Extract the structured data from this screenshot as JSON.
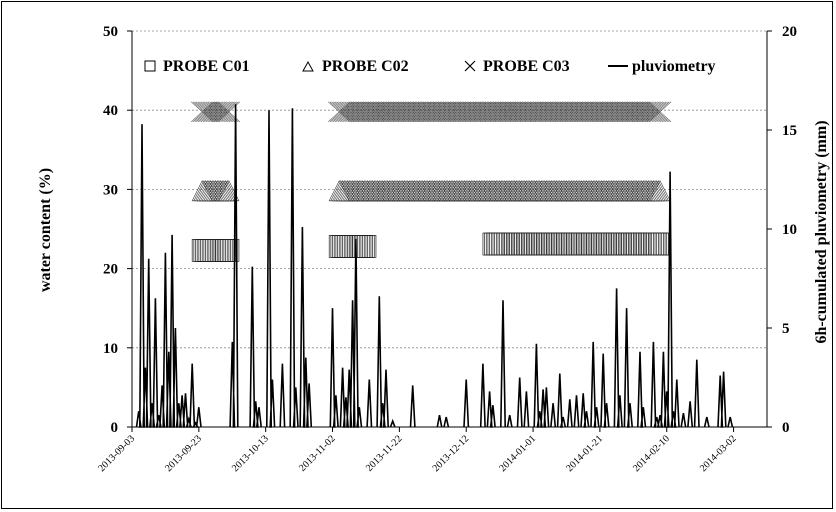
{
  "chart_data": {
    "type": "line",
    "title": "",
    "ylabel": "water content (%)",
    "y2label": "6h-cumulated pluviometry (mm)",
    "ylim": [
      0,
      50
    ],
    "y2lim": [
      0,
      20
    ],
    "yticks": [
      "0",
      "10",
      "20",
      "30",
      "40",
      "50"
    ],
    "y2ticks": [
      "0",
      "5",
      "10",
      "15",
      "20"
    ],
    "xlim": [
      "2013-09-03",
      "2014-03-12"
    ],
    "xticks": [
      "2013-09-03",
      "2013-09-23",
      "2013-10-13",
      "2013-11-02",
      "2013-11-22",
      "2013-12-12",
      "2014-01-01",
      "2014-01-21",
      "2014-02-10",
      "2014-03-02"
    ],
    "grid": "horizontal dashed at y-ticks",
    "legend_placement": "top",
    "colors": {
      "series": "#000000",
      "markers": "#333333",
      "grid": "#888888"
    },
    "series": [
      {
        "name": "PROBE C01",
        "marker": "square",
        "axis": "left",
        "segments": [
          {
            "x": [
              "2013-09-24",
              "2013-10-02"
            ],
            "y": 22.3
          },
          {
            "x": [
              "2013-11-04",
              "2013-11-12"
            ],
            "y": 22.8
          },
          {
            "x": [
              "2013-12-20",
              "2014-02-08"
            ],
            "y": 23.1
          }
        ]
      },
      {
        "name": "PROBE C02",
        "marker": "triangle",
        "axis": "left",
        "segments": [
          {
            "x": [
              "2013-09-24",
              "2013-10-02"
            ],
            "y": 29.7
          },
          {
            "x": [
              "2013-11-04",
              "2014-02-08"
            ],
            "y": 29.7
          }
        ]
      },
      {
        "name": "PROBE C03",
        "marker": "cross",
        "axis": "left",
        "segments": [
          {
            "x": [
              "2013-09-24",
              "2013-10-02"
            ],
            "y": 39.8
          },
          {
            "x": [
              "2013-11-04",
              "2014-02-08"
            ],
            "y": 39.8
          }
        ]
      },
      {
        "name": "pluviometry",
        "marker": "line",
        "axis": "right",
        "points": [
          [
            "2013-09-05",
            0.8
          ],
          [
            "2013-09-06",
            15.3
          ],
          [
            "2013-09-07",
            3.0
          ],
          [
            "2013-09-08",
            8.5
          ],
          [
            "2013-09-09",
            1.2
          ],
          [
            "2013-09-10",
            6.5
          ],
          [
            "2013-09-11",
            0.6
          ],
          [
            "2013-09-12",
            2.1
          ],
          [
            "2013-09-13",
            8.8
          ],
          [
            "2013-09-14",
            3.8
          ],
          [
            "2013-09-15",
            9.7
          ],
          [
            "2013-09-16",
            5.0
          ],
          [
            "2013-09-17",
            1.2
          ],
          [
            "2013-09-18",
            1.6
          ],
          [
            "2013-09-19",
            1.7
          ],
          [
            "2013-09-20",
            0.4
          ],
          [
            "2013-09-21",
            3.2
          ],
          [
            "2013-09-22",
            0.2
          ],
          [
            "2013-09-23",
            1.0
          ],
          [
            "2013-10-03",
            4.3
          ],
          [
            "2013-10-04",
            16.3
          ],
          [
            "2013-10-09",
            8.1
          ],
          [
            "2013-10-10",
            1.3
          ],
          [
            "2013-10-11",
            1.0
          ],
          [
            "2013-10-14",
            16.0
          ],
          [
            "2013-10-15",
            2.4
          ],
          [
            "2013-10-18",
            3.2
          ],
          [
            "2013-10-21",
            16.1
          ],
          [
            "2013-10-22",
            2.0
          ],
          [
            "2013-10-24",
            10.1
          ],
          [
            "2013-10-25",
            3.5
          ],
          [
            "2013-10-26",
            2.2
          ],
          [
            "2013-11-02",
            6.0
          ],
          [
            "2013-11-03",
            1.6
          ],
          [
            "2013-11-05",
            3.0
          ],
          [
            "2013-11-06",
            1.5
          ],
          [
            "2013-11-07",
            2.9
          ],
          [
            "2013-11-08",
            6.4
          ],
          [
            "2013-11-09",
            9.5
          ],
          [
            "2013-11-10",
            1.0
          ],
          [
            "2013-11-13",
            2.4
          ],
          [
            "2013-11-16",
            6.6
          ],
          [
            "2013-11-17",
            1.2
          ],
          [
            "2013-11-18",
            2.9
          ],
          [
            "2013-11-20",
            0.3
          ],
          [
            "2013-11-26",
            2.1
          ],
          [
            "2013-12-04",
            0.6
          ],
          [
            "2013-12-06",
            0.5
          ],
          [
            "2013-12-12",
            2.4
          ],
          [
            "2013-12-17",
            3.2
          ],
          [
            "2013-12-19",
            1.8
          ],
          [
            "2013-12-20",
            1.1
          ],
          [
            "2013-12-23",
            6.4
          ],
          [
            "2013-12-25",
            0.6
          ],
          [
            "2013-12-28",
            2.5
          ],
          [
            "2013-12-30",
            1.8
          ],
          [
            "2014-01-02",
            4.2
          ],
          [
            "2014-01-03",
            0.8
          ],
          [
            "2014-01-04",
            1.9
          ],
          [
            "2014-01-05",
            2.0
          ],
          [
            "2014-01-07",
            1.2
          ],
          [
            "2014-01-09",
            2.7
          ],
          [
            "2014-01-10",
            0.5
          ],
          [
            "2014-01-12",
            1.4
          ],
          [
            "2014-01-14",
            1.6
          ],
          [
            "2014-01-16",
            1.7
          ],
          [
            "2014-01-17",
            0.8
          ],
          [
            "2014-01-19",
            4.3
          ],
          [
            "2014-01-20",
            1.0
          ],
          [
            "2014-01-22",
            3.7
          ],
          [
            "2014-01-23",
            1.2
          ],
          [
            "2014-01-26",
            7.0
          ],
          [
            "2014-01-27",
            1.6
          ],
          [
            "2014-01-29",
            6.0
          ],
          [
            "2014-01-30",
            1.2
          ],
          [
            "2014-02-02",
            3.8
          ],
          [
            "2014-02-03",
            1.0
          ],
          [
            "2014-02-06",
            4.3
          ],
          [
            "2014-02-07",
            0.5
          ],
          [
            "2014-02-08",
            0.6
          ],
          [
            "2014-02-09",
            3.8
          ],
          [
            "2014-02-10",
            1.8
          ],
          [
            "2014-02-11",
            12.9
          ],
          [
            "2014-02-12",
            0.8
          ],
          [
            "2014-02-13",
            2.4
          ],
          [
            "2014-02-15",
            0.7
          ],
          [
            "2014-02-17",
            1.3
          ],
          [
            "2014-02-19",
            3.4
          ],
          [
            "2014-02-22",
            0.5
          ],
          [
            "2014-02-26",
            2.6
          ],
          [
            "2014-02-27",
            2.8
          ],
          [
            "2014-03-01",
            0.5
          ]
        ]
      }
    ]
  }
}
